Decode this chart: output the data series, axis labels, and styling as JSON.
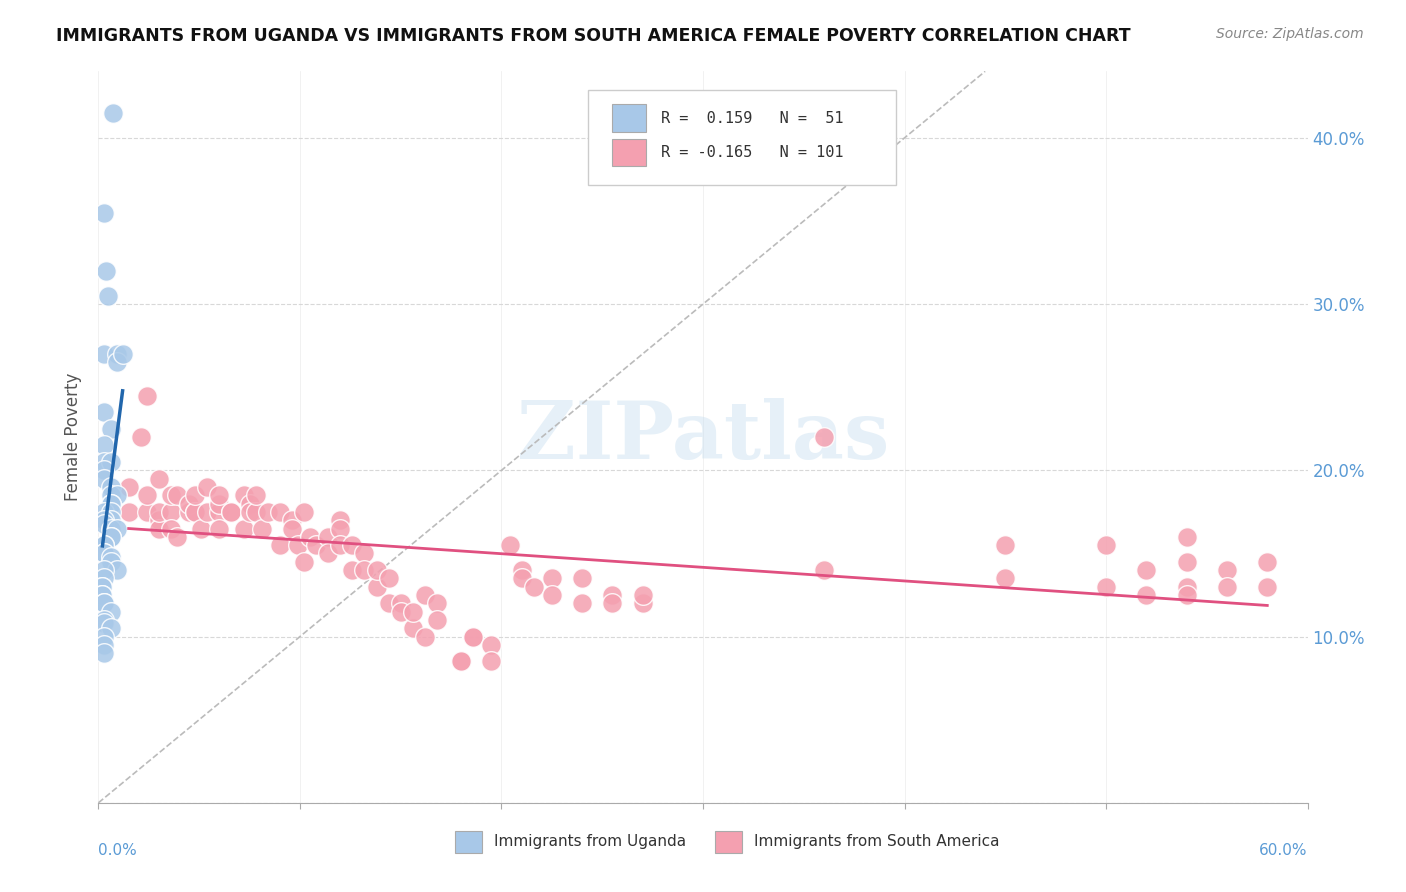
{
  "title": "IMMIGRANTS FROM UGANDA VS IMMIGRANTS FROM SOUTH AMERICA FEMALE POVERTY CORRELATION CHART",
  "source": "Source: ZipAtlas.com",
  "ylabel": "Female Poverty",
  "color_uganda": "#a8c8e8",
  "color_south_america": "#f4a0b0",
  "color_trendline_uganda": "#2166ac",
  "color_trendline_sa": "#e05080",
  "xlim": [
    0.0,
    0.6
  ],
  "ylim": [
    0.0,
    0.44
  ],
  "xticks": [
    0.0,
    0.1,
    0.2,
    0.3,
    0.4,
    0.5,
    0.6
  ],
  "yticks": [
    0.0,
    0.1,
    0.2,
    0.3,
    0.4
  ],
  "ytick_labels_right": [
    "",
    "10.0%",
    "20.0%",
    "30.0%",
    "40.0%"
  ],
  "background_color": "#ffffff",
  "grid_color": "#d8d8d8",
  "uganda_x": [
    0.007,
    0.003,
    0.004,
    0.005,
    0.003,
    0.009,
    0.009,
    0.012,
    0.003,
    0.006,
    0.003,
    0.003,
    0.006,
    0.003,
    0.003,
    0.006,
    0.006,
    0.009,
    0.006,
    0.006,
    0.003,
    0.006,
    0.006,
    0.003,
    0.003,
    0.006,
    0.009,
    0.006,
    0.006,
    0.003,
    0.003,
    0.003,
    0.003,
    0.006,
    0.006,
    0.009,
    0.003,
    0.003,
    0.002,
    0.002,
    0.002,
    0.002,
    0.003,
    0.003,
    0.006,
    0.003,
    0.003,
    0.006,
    0.003,
    0.003,
    0.003
  ],
  "uganda_y": [
    0.415,
    0.355,
    0.32,
    0.305,
    0.27,
    0.27,
    0.265,
    0.27,
    0.235,
    0.225,
    0.215,
    0.205,
    0.205,
    0.2,
    0.195,
    0.19,
    0.185,
    0.185,
    0.18,
    0.18,
    0.175,
    0.175,
    0.17,
    0.17,
    0.168,
    0.165,
    0.165,
    0.16,
    0.16,
    0.155,
    0.155,
    0.15,
    0.15,
    0.148,
    0.145,
    0.14,
    0.14,
    0.135,
    0.13,
    0.13,
    0.125,
    0.125,
    0.12,
    0.12,
    0.115,
    0.11,
    0.108,
    0.105,
    0.1,
    0.095,
    0.09
  ],
  "sa_x": [
    0.015,
    0.015,
    0.021,
    0.024,
    0.024,
    0.024,
    0.03,
    0.03,
    0.03,
    0.03,
    0.036,
    0.036,
    0.036,
    0.039,
    0.039,
    0.045,
    0.045,
    0.048,
    0.048,
    0.048,
    0.051,
    0.054,
    0.054,
    0.06,
    0.06,
    0.06,
    0.06,
    0.066,
    0.066,
    0.072,
    0.072,
    0.075,
    0.075,
    0.078,
    0.078,
    0.081,
    0.084,
    0.09,
    0.09,
    0.096,
    0.096,
    0.099,
    0.102,
    0.102,
    0.105,
    0.108,
    0.114,
    0.114,
    0.12,
    0.12,
    0.12,
    0.126,
    0.126,
    0.132,
    0.132,
    0.138,
    0.138,
    0.144,
    0.144,
    0.15,
    0.15,
    0.156,
    0.156,
    0.162,
    0.162,
    0.168,
    0.168,
    0.18,
    0.18,
    0.186,
    0.186,
    0.195,
    0.195,
    0.204,
    0.21,
    0.21,
    0.216,
    0.225,
    0.225,
    0.24,
    0.24,
    0.255,
    0.255,
    0.27,
    0.27,
    0.36,
    0.36,
    0.45,
    0.45,
    0.54,
    0.54,
    0.5,
    0.5,
    0.52,
    0.52,
    0.54,
    0.54,
    0.56,
    0.56,
    0.58,
    0.58
  ],
  "sa_y": [
    0.19,
    0.175,
    0.22,
    0.245,
    0.175,
    0.185,
    0.17,
    0.165,
    0.175,
    0.195,
    0.175,
    0.185,
    0.165,
    0.16,
    0.185,
    0.175,
    0.18,
    0.175,
    0.175,
    0.185,
    0.165,
    0.19,
    0.175,
    0.175,
    0.18,
    0.185,
    0.165,
    0.175,
    0.175,
    0.185,
    0.165,
    0.18,
    0.175,
    0.175,
    0.185,
    0.165,
    0.175,
    0.155,
    0.175,
    0.17,
    0.165,
    0.155,
    0.175,
    0.145,
    0.16,
    0.155,
    0.16,
    0.15,
    0.17,
    0.165,
    0.155,
    0.155,
    0.14,
    0.15,
    0.14,
    0.13,
    0.14,
    0.12,
    0.135,
    0.12,
    0.115,
    0.105,
    0.115,
    0.125,
    0.1,
    0.12,
    0.11,
    0.085,
    0.085,
    0.1,
    0.1,
    0.095,
    0.085,
    0.155,
    0.14,
    0.135,
    0.13,
    0.135,
    0.125,
    0.135,
    0.12,
    0.125,
    0.12,
    0.12,
    0.125,
    0.22,
    0.14,
    0.155,
    0.135,
    0.16,
    0.13,
    0.155,
    0.13,
    0.14,
    0.125,
    0.145,
    0.125,
    0.14,
    0.13,
    0.145,
    0.13
  ]
}
